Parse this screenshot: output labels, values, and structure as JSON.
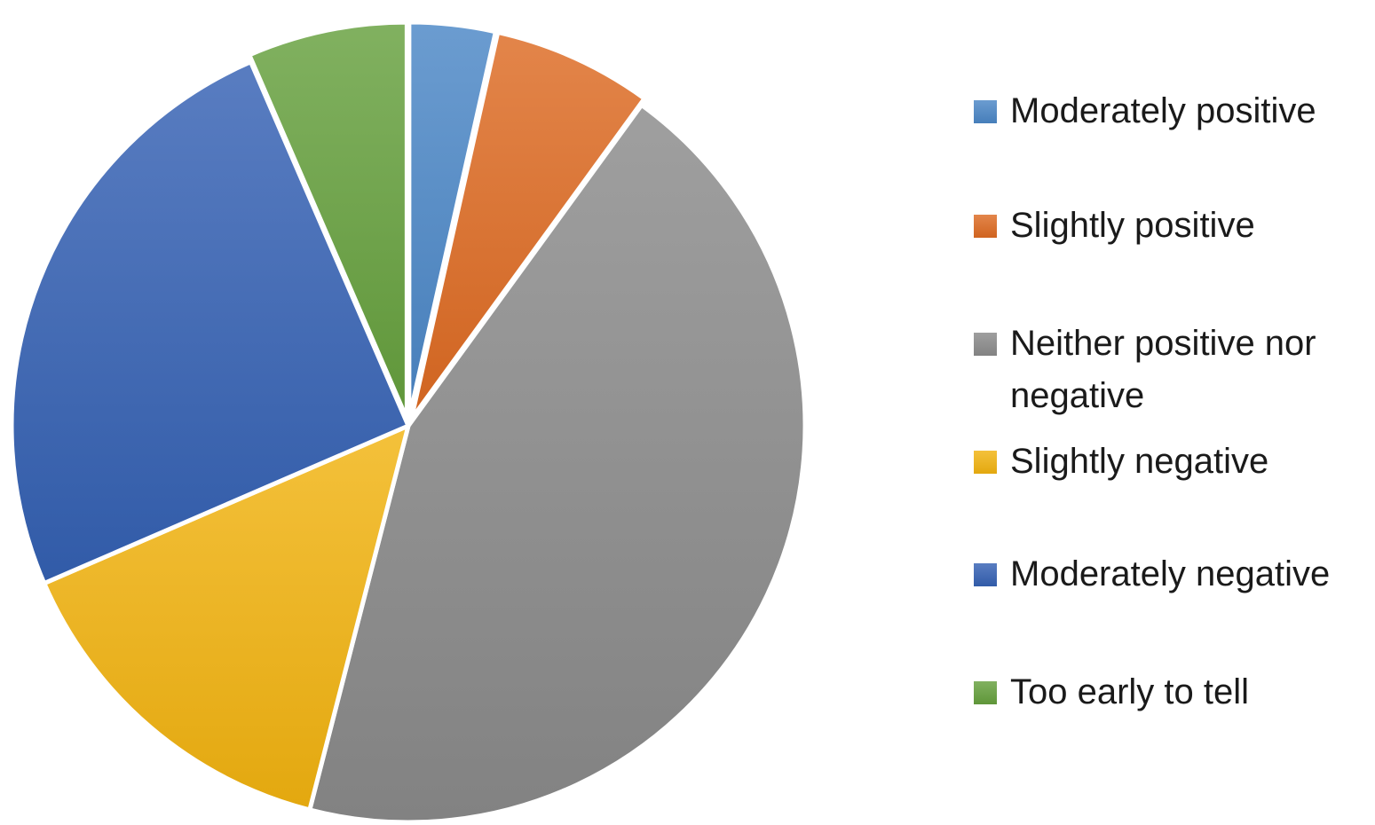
{
  "chart_data": {
    "type": "pie",
    "title": "",
    "categories": [
      "Moderately positive",
      "Slightly positive",
      "Neither positive nor negative",
      "Slightly negative",
      "Moderately negative",
      "Too early to tell"
    ],
    "values": [
      3.5,
      6.5,
      44,
      14.5,
      25,
      6.5
    ],
    "colors": [
      "#4a86c6",
      "#dd6a22",
      "#8a8a8a",
      "#f1b310",
      "#3461b3",
      "#65a03d"
    ],
    "exploded_slices": [
      "Moderately positive",
      "Slightly positive",
      "Too early to tell"
    ],
    "legend": {
      "placement": "right",
      "entries": [
        "Moderately positive",
        "Slightly positive",
        "Neither positive nor negative",
        "Slightly negative",
        "Moderately negative",
        "Too early to tell"
      ]
    }
  }
}
